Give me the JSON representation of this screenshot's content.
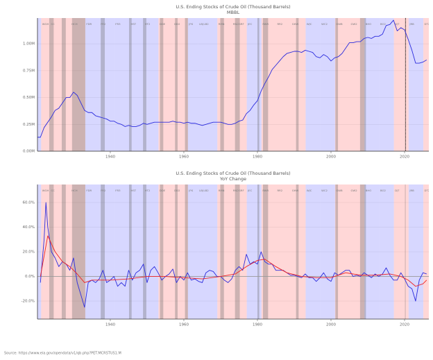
{
  "source": "Source: https://www.eia.gov/opendata/v1/qb.php?PET.MCRSTUS1.M",
  "periods": {
    "party_colors": {
      "R": "rgba(255,150,150,0.38)",
      "D": "rgba(150,150,255,0.38)"
    },
    "recession_color": "rgba(110,110,110,0.35)",
    "terms": [
      {
        "label": null,
        "start": 1913.2,
        "end": 1921.2,
        "party": "D"
      },
      {
        "label": "WGH",
        "start": 1921.2,
        "end": 1923.6,
        "party": "R"
      },
      {
        "label": "CC",
        "start": 1923.6,
        "end": 1929.2,
        "party": "R"
      },
      {
        "label": "HCH",
        "start": 1929.2,
        "end": 1933.2,
        "party": "R"
      },
      {
        "label": "FDR",
        "start": 1933.2,
        "end": 1937.1,
        "party": "D"
      },
      {
        "label": "FR2",
        "start": 1937.1,
        "end": 1941.1,
        "party": "D"
      },
      {
        "label": "FR3",
        "start": 1941.1,
        "end": 1945.3,
        "party": "D"
      },
      {
        "label": "HST",
        "start": 1945.3,
        "end": 1949.1,
        "party": "D"
      },
      {
        "label": "HT2",
        "start": 1949.1,
        "end": 1953.1,
        "party": "D"
      },
      {
        "label": "DDE",
        "start": 1953.1,
        "end": 1957.1,
        "party": "R"
      },
      {
        "label": "DD2",
        "start": 1957.1,
        "end": 1961.1,
        "party": "R"
      },
      {
        "label": "JFK",
        "start": 1961.1,
        "end": 1963.9,
        "party": "D"
      },
      {
        "label": "LBJ",
        "start": 1963.9,
        "end": 1965.1,
        "party": "D"
      },
      {
        "label": "LB2",
        "start": 1965.1,
        "end": 1969.1,
        "party": "D"
      },
      {
        "label": "RMN",
        "start": 1969.1,
        "end": 1973.1,
        "party": "R"
      },
      {
        "label": "RN2",
        "start": 1973.1,
        "end": 1974.6,
        "party": "R"
      },
      {
        "label": "GRF",
        "start": 1974.6,
        "end": 1977.1,
        "party": "R"
      },
      {
        "label": "JEC",
        "start": 1977.1,
        "end": 1981.1,
        "party": "D"
      },
      {
        "label": "RWR",
        "start": 1981.1,
        "end": 1985.1,
        "party": "R"
      },
      {
        "label": "RR2",
        "start": 1985.1,
        "end": 1989.1,
        "party": "R"
      },
      {
        "label": "GHW",
        "start": 1989.1,
        "end": 1993.1,
        "party": "R"
      },
      {
        "label": "WJC",
        "start": 1993.1,
        "end": 1997.1,
        "party": "D"
      },
      {
        "label": "WC2",
        "start": 1997.1,
        "end": 2001.1,
        "party": "D"
      },
      {
        "label": "GWB",
        "start": 2001.1,
        "end": 2005.1,
        "party": "R"
      },
      {
        "label": "GW2",
        "start": 2005.1,
        "end": 2009.1,
        "party": "R"
      },
      {
        "label": "BHO",
        "start": 2009.1,
        "end": 2013.1,
        "party": "D"
      },
      {
        "label": "BO2",
        "start": 2013.1,
        "end": 2017.1,
        "party": "D"
      },
      {
        "label": "DJT",
        "start": 2017.1,
        "end": 2021.1,
        "party": "R"
      },
      {
        "label": "JRB",
        "start": 2021.1,
        "end": 2025.1,
        "party": "D"
      },
      {
        "label": "DT2",
        "start": 2025.1,
        "end": 2029.1,
        "party": "R"
      }
    ],
    "recessions": [
      [
        1923.4,
        1924.6
      ],
      [
        1926.8,
        1927.9
      ],
      [
        1929.6,
        1933.2
      ],
      [
        1937.4,
        1938.5
      ],
      [
        1945.1,
        1945.8
      ],
      [
        1948.9,
        1949.8
      ],
      [
        1953.5,
        1954.4
      ],
      [
        1957.6,
        1958.3
      ],
      [
        1960.3,
        1961.1
      ],
      [
        1969.9,
        1970.9
      ],
      [
        1973.9,
        1975.2
      ],
      [
        1980.0,
        1980.5
      ],
      [
        1981.5,
        1982.9
      ],
      [
        1990.5,
        1991.2
      ],
      [
        2001.2,
        2001.9
      ],
      [
        2007.9,
        2009.5
      ],
      [
        2020.1,
        2020.3
      ]
    ]
  },
  "chart_data": [
    {
      "type": "line",
      "title": "U.S. Ending Stocks of Crude Oil (Thousand Barrels)",
      "subtitle": "MBBL",
      "xlim": [
        1920.2,
        2026.6
      ],
      "xticks": [
        1940,
        1960,
        1980,
        2000,
        2020
      ],
      "ylim": [
        0,
        1.24
      ],
      "yticks": [
        {
          "value": 0,
          "label": "0.00M"
        },
        {
          "value": 0.25,
          "label": "0.25M"
        },
        {
          "value": 0.5,
          "label": "0.50M"
        },
        {
          "value": 0.75,
          "label": "0.75M"
        },
        {
          "value": 1.0,
          "label": "1.00M"
        }
      ],
      "grid": true,
      "marker_x": 2020.3,
      "series": [
        {
          "color": "#2b2bdd",
          "x": [
            1920.2,
            1921,
            1922,
            1923,
            1924,
            1925,
            1926,
            1927,
            1928,
            1929,
            1930,
            1931,
            1932,
            1933,
            1934,
            1935,
            1936,
            1937,
            1938,
            1939,
            1940,
            1941,
            1942,
            1943,
            1944,
            1945,
            1946,
            1947,
            1948,
            1949,
            1950,
            1951,
            1952,
            1953,
            1954,
            1955,
            1956,
            1957,
            1958,
            1959,
            1960,
            1961,
            1962,
            1963,
            1964,
            1965,
            1966,
            1967,
            1968,
            1969,
            1970,
            1971,
            1972,
            1973,
            1974,
            1975,
            1976,
            1977,
            1978,
            1979,
            1980,
            1981,
            1982,
            1983,
            1984,
            1985,
            1986,
            1987,
            1988,
            1989,
            1990,
            1991,
            1992,
            1993,
            1994,
            1995,
            1996,
            1997,
            1998,
            1999,
            2000,
            2001,
            2002,
            2003,
            2004,
            2005,
            2006,
            2007,
            2008,
            2009,
            2010,
            2011,
            2012,
            2013,
            2014,
            2015,
            2016,
            2017,
            2018,
            2019,
            2020,
            2021,
            2022,
            2023,
            2024,
            2025,
            2026
          ],
          "values": [
            0.13,
            0.13,
            0.22,
            0.27,
            0.32,
            0.38,
            0.4,
            0.45,
            0.5,
            0.5,
            0.55,
            0.52,
            0.45,
            0.38,
            0.36,
            0.36,
            0.33,
            0.32,
            0.31,
            0.3,
            0.28,
            0.28,
            0.26,
            0.25,
            0.23,
            0.24,
            0.23,
            0.23,
            0.24,
            0.26,
            0.25,
            0.26,
            0.27,
            0.27,
            0.27,
            0.27,
            0.27,
            0.28,
            0.27,
            0.27,
            0.26,
            0.27,
            0.26,
            0.26,
            0.25,
            0.24,
            0.25,
            0.26,
            0.27,
            0.27,
            0.27,
            0.26,
            0.25,
            0.25,
            0.26,
            0.28,
            0.29,
            0.35,
            0.38,
            0.43,
            0.47,
            0.56,
            0.63,
            0.69,
            0.76,
            0.8,
            0.84,
            0.88,
            0.91,
            0.92,
            0.93,
            0.93,
            0.92,
            0.94,
            0.93,
            0.92,
            0.88,
            0.87,
            0.9,
            0.88,
            0.84,
            0.87,
            0.88,
            0.91,
            0.96,
            1.01,
            1.01,
            1.02,
            1.02,
            1.05,
            1.06,
            1.05,
            1.07,
            1.07,
            1.09,
            1.17,
            1.18,
            1.22,
            1.12,
            1.15,
            1.13,
            1.04,
            0.94,
            0.82,
            0.82,
            0.83,
            0.85
          ]
        }
      ]
    },
    {
      "type": "line",
      "title": "U.S. Ending Stocks of Crude Oil (Thousand Barrels)",
      "subtitle": "YoY Change",
      "xlim": [
        1920.2,
        2026.6
      ],
      "xticks": [
        1940,
        1960,
        1980,
        2000,
        2020
      ],
      "ylim": [
        -34.6,
        74.6
      ],
      "yticks": [
        {
          "value": -20,
          "label": "-20.0%"
        },
        {
          "value": 0,
          "label": "0.0%"
        },
        {
          "value": 20,
          "label": "20.0%"
        },
        {
          "value": 40,
          "label": "40.0%"
        },
        {
          "value": 60,
          "label": "60.0%"
        }
      ],
      "grid": true,
      "series": [
        {
          "color": "#2b2bdd",
          "x": [
            1921,
            1922,
            1922.5,
            1923,
            1924,
            1925,
            1926,
            1927,
            1928,
            1929,
            1930,
            1931,
            1932,
            1933,
            1934,
            1935,
            1936,
            1937,
            1938,
            1939,
            1940,
            1941,
            1942,
            1943,
            1944,
            1945,
            1946,
            1947,
            1948,
            1949,
            1950,
            1951,
            1952,
            1953,
            1954,
            1955,
            1956,
            1957,
            1958,
            1959,
            1960,
            1961,
            1962,
            1963,
            1964,
            1965,
            1966,
            1967,
            1968,
            1969,
            1970,
            1971,
            1972,
            1973,
            1974,
            1975,
            1976,
            1977,
            1978,
            1979,
            1980,
            1981,
            1982,
            1983,
            1984,
            1985,
            1986,
            1987,
            1988,
            1989,
            1990,
            1991,
            1992,
            1993,
            1994,
            1995,
            1996,
            1997,
            1998,
            1999,
            2000,
            2001,
            2002,
            2003,
            2004,
            2005,
            2006,
            2007,
            2008,
            2009,
            2010,
            2011,
            2012,
            2013,
            2014,
            2015,
            2016,
            2017,
            2018,
            2019,
            2020,
            2021,
            2022,
            2023,
            2024,
            2025,
            2026
          ],
          "values": [
            -5,
            30,
            60,
            40,
            20,
            15,
            8,
            12,
            10,
            5,
            15,
            -5,
            -15,
            -25,
            -5,
            -3,
            -5,
            -2,
            5,
            -5,
            -3,
            0,
            -8,
            -5,
            -8,
            5,
            -3,
            3,
            5,
            10,
            -5,
            5,
            8,
            3,
            -3,
            0,
            2,
            6,
            -5,
            0,
            -3,
            3,
            -3,
            -2,
            -4,
            -5,
            3,
            5,
            4,
            0,
            0,
            -3,
            -5,
            -2,
            5,
            8,
            5,
            18,
            10,
            12,
            10,
            20,
            12,
            10,
            10,
            5,
            5,
            5,
            3,
            1,
            1,
            0,
            -1,
            2,
            -1,
            -1,
            -4,
            -1,
            3,
            -2,
            -4,
            3,
            1,
            3,
            5,
            5,
            0,
            1,
            0,
            3,
            1,
            -1,
            2,
            0,
            2,
            7,
            1,
            -3,
            -3,
            3,
            -2,
            -8,
            -10,
            -20,
            -3,
            3,
            2
          ]
        },
        {
          "color": "#ee2222",
          "x": [
            1921,
            1923,
            1925,
            1927,
            1929,
            1931,
            1933,
            1935,
            1940,
            1945,
            1950,
            1955,
            1960,
            1965,
            1970,
            1974,
            1977,
            1980,
            1982,
            1985,
            1988,
            1992,
            1996,
            2000,
            2004,
            2008,
            2012,
            2016,
            2019,
            2021,
            2023,
            2025,
            2026
          ],
          "values": [
            0,
            33,
            20,
            12,
            8,
            2,
            -5,
            -3,
            -3,
            -2,
            0,
            0,
            -1,
            -2,
            0,
            2,
            8,
            13,
            14,
            8,
            3,
            0,
            -1,
            -1,
            3,
            1,
            1,
            2,
            0,
            -3,
            -8,
            -6,
            -3
          ]
        }
      ]
    }
  ]
}
